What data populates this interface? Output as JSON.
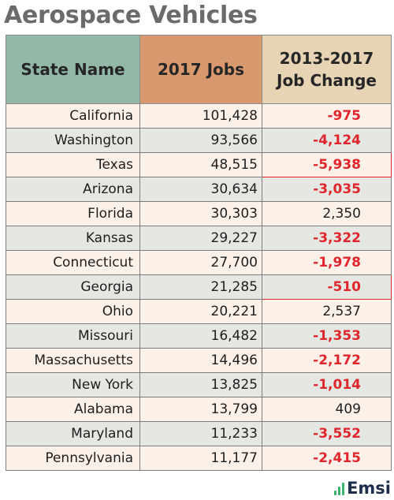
{
  "title": "Aerospace Vehicles",
  "brand": "Emsi",
  "brand_icon": "bar-chart-icon",
  "colors": {
    "header_state": "#93b8a8",
    "header_jobs": "#d8996e",
    "header_change": "#e6d4b4",
    "negative": "#e0262c",
    "row_light": "#fbf1e9",
    "row_gray": "#e4e7e2",
    "brand_icon": "#3bb56e",
    "brand_text": "#1e2d4a"
  },
  "headers": {
    "state": "State Name",
    "jobs": "2017 Jobs",
    "change_line1": "2013-2017",
    "change_line2": "Job Change"
  },
  "chart_data": {
    "type": "table",
    "title": "Aerospace Vehicles",
    "columns": [
      "State Name",
      "2017 Jobs",
      "2013-2017 Job Change"
    ],
    "rows": [
      {
        "state": "California",
        "jobs": "101,428",
        "change": "-975"
      },
      {
        "state": "Washington",
        "jobs": "93,566",
        "change": "-4,124"
      },
      {
        "state": "Texas",
        "jobs": "48,515",
        "change": "-5,938"
      },
      {
        "state": "Arizona",
        "jobs": "30,634",
        "change": "-3,035"
      },
      {
        "state": "Florida",
        "jobs": "30,303",
        "change": "2,350"
      },
      {
        "state": "Kansas",
        "jobs": "29,227",
        "change": "-3,322"
      },
      {
        "state": "Connecticut",
        "jobs": "27,700",
        "change": "-1,978"
      },
      {
        "state": "Georgia",
        "jobs": "21,285",
        "change": "-510"
      },
      {
        "state": "Ohio",
        "jobs": "20,221",
        "change": "2,537"
      },
      {
        "state": "Missouri",
        "jobs": "16,482",
        "change": "-1,353"
      },
      {
        "state": "Massachusetts",
        "jobs": "14,496",
        "change": "-2,172"
      },
      {
        "state": "New York",
        "jobs": "13,825",
        "change": "-1,014"
      },
      {
        "state": "Alabama",
        "jobs": "13,799",
        "change": "409"
      },
      {
        "state": "Maryland",
        "jobs": "11,233",
        "change": "-3,552"
      },
      {
        "state": "Pennsylvania",
        "jobs": "11,177",
        "change": "-2,415"
      }
    ],
    "highlighted_change_cells": [
      "Texas",
      "Georgia"
    ]
  }
}
